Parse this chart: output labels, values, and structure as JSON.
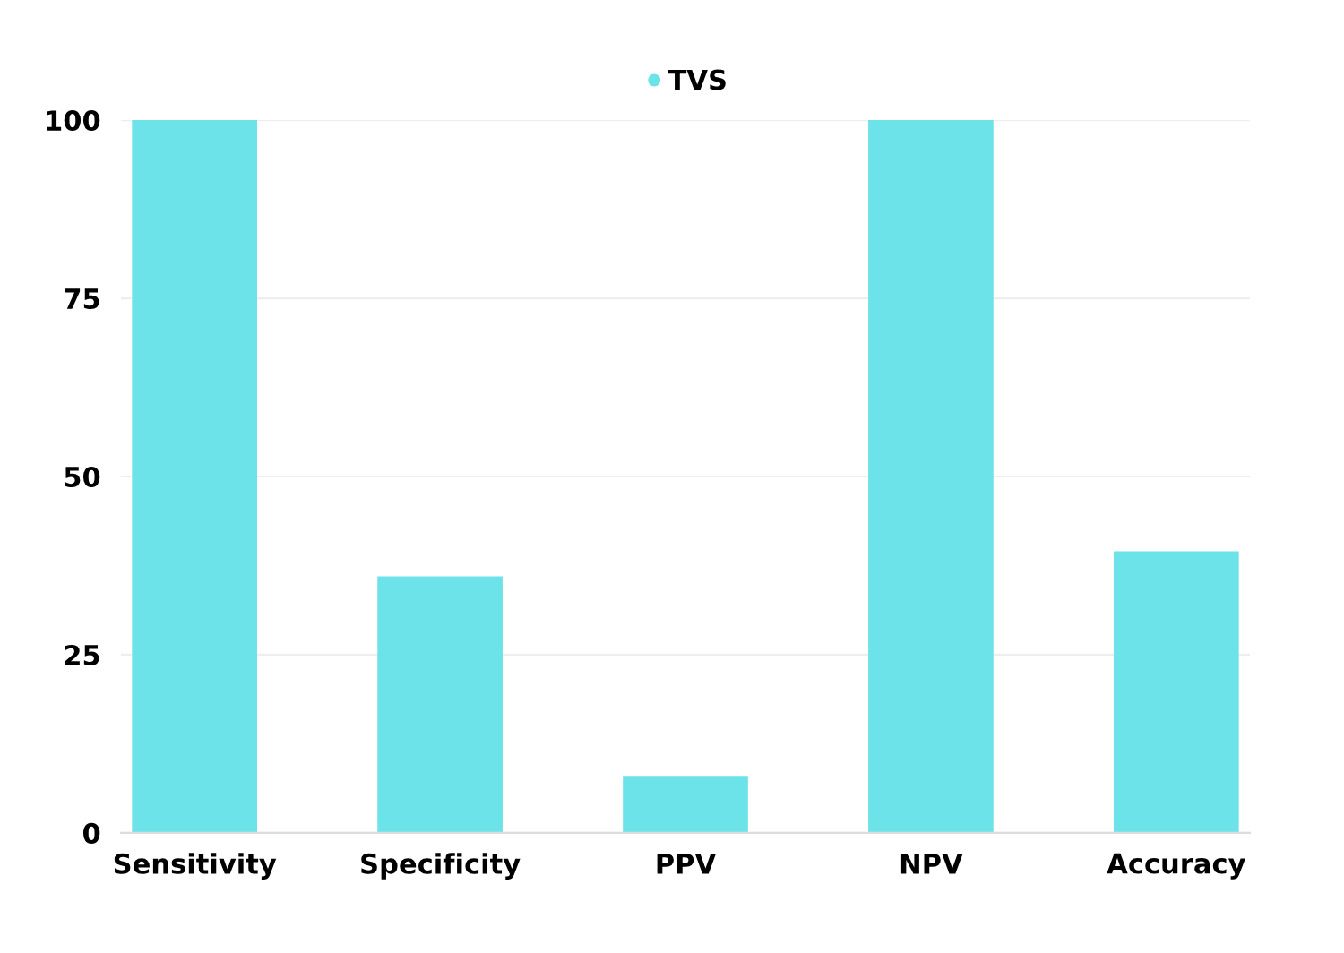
{
  "chart_data": {
    "type": "bar",
    "categories": [
      "Sensitivity",
      "Specificity",
      "PPV",
      "NPV",
      "Accuracy"
    ],
    "series": [
      {
        "name": "TVS",
        "color": "#6ce3e9",
        "values": [
          100,
          36,
          8,
          100,
          39.5
        ]
      }
    ],
    "ylim": [
      0,
      100
    ],
    "yticks": [
      0,
      25,
      50,
      75,
      100
    ],
    "grid": "y",
    "legend": "top"
  }
}
